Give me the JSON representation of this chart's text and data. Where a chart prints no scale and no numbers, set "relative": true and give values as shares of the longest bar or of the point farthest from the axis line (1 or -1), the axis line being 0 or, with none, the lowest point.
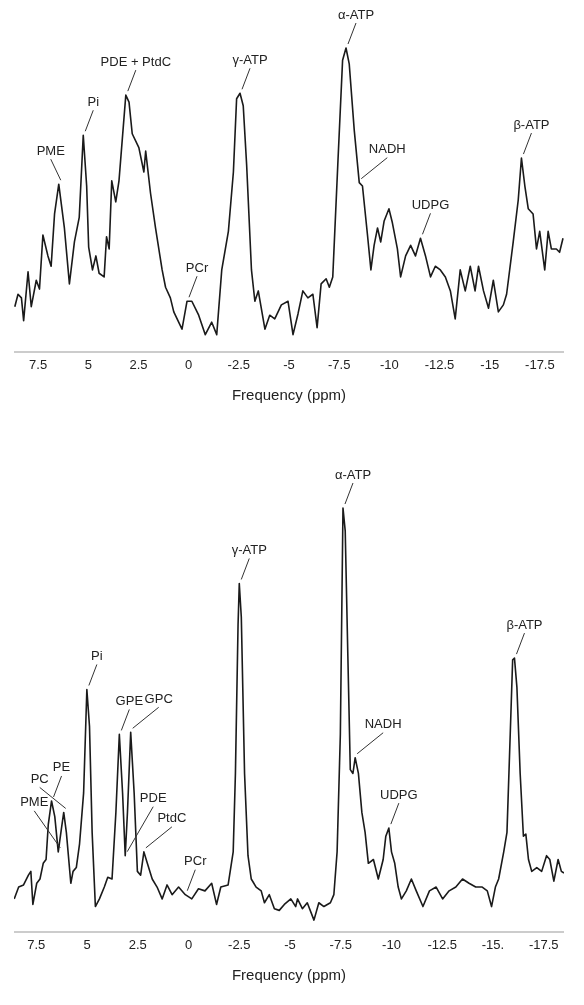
{
  "chart_data": [
    {
      "type": "line",
      "relative": true,
      "xlabel": "Frequency (ppm)",
      "xlim": [
        8.7,
        -18.7
      ],
      "xticks": [
        7.5,
        5,
        2.5,
        0,
        -2.5,
        -5,
        -7.5,
        -10,
        -12.5,
        -15,
        -17.5
      ],
      "marker": "none",
      "line_style": "solid",
      "x": [
        8.66,
        8.5,
        8.33,
        8.22,
        8.0,
        7.84,
        7.59,
        7.43,
        7.26,
        7.01,
        6.85,
        6.68,
        6.47,
        6.19,
        5.94,
        5.69,
        5.45,
        5.25,
        5.08,
        4.98,
        4.79,
        4.62,
        4.46,
        4.21,
        4.09,
        3.96,
        3.83,
        3.63,
        3.47,
        3.13,
        2.97,
        2.81,
        2.48,
        2.23,
        2.14,
        1.9,
        1.65,
        1.32,
        1.15,
        0.91,
        0.74,
        0.33,
        0.08,
        -0.16,
        -0.5,
        -0.83,
        -1.15,
        -1.4,
        -1.65,
        -1.98,
        -2.23,
        -2.39,
        -2.56,
        -2.72,
        -2.89,
        -3.13,
        -3.3,
        -3.47,
        -3.8,
        -4.04,
        -4.29,
        -4.62,
        -4.95,
        -5.2,
        -5.45,
        -5.69,
        -5.94,
        -6.19,
        -6.4,
        -6.6,
        -6.85,
        -7.01,
        -7.18,
        -7.43,
        -7.67,
        -7.84,
        -8.0,
        -8.25,
        -8.5,
        -8.66,
        -8.91,
        -9.08,
        -9.24,
        -9.41,
        -9.57,
        -9.74,
        -9.98,
        -10.15,
        -10.4,
        -10.56,
        -10.81,
        -11.06,
        -11.3,
        -11.55,
        -11.8,
        -12.05,
        -12.29,
        -12.54,
        -12.79,
        -13.04,
        -13.28,
        -13.53,
        -13.78,
        -14.03,
        -14.27,
        -14.44,
        -14.69,
        -14.94,
        -15.18,
        -15.43,
        -15.68,
        -15.84,
        -16.17,
        -16.42,
        -16.58,
        -16.75,
        -16.92,
        -17.16,
        -17.33,
        -17.49,
        -17.74,
        -17.91,
        -18.07,
        -18.32,
        -18.48,
        -18.65
      ],
      "series": [
        {
          "color": "#1a1a1a",
          "values": [
            0.149,
            0.19,
            0.178,
            0.103,
            0.264,
            0.149,
            0.236,
            0.207,
            0.385,
            0.316,
            0.282,
            0.454,
            0.552,
            0.408,
            0.224,
            0.362,
            0.443,
            0.713,
            0.546,
            0.345,
            0.27,
            0.316,
            0.259,
            0.247,
            0.379,
            0.339,
            0.563,
            0.494,
            0.563,
            0.845,
            0.822,
            0.718,
            0.672,
            0.592,
            0.661,
            0.523,
            0.408,
            0.27,
            0.213,
            0.178,
            0.132,
            0.075,
            0.167,
            0.167,
            0.121,
            0.057,
            0.098,
            0.057,
            0.27,
            0.397,
            0.592,
            0.833,
            0.851,
            0.81,
            0.615,
            0.27,
            0.167,
            0.201,
            0.075,
            0.121,
            0.109,
            0.155,
            0.167,
            0.057,
            0.126,
            0.201,
            0.178,
            0.19,
            0.08,
            0.224,
            0.241,
            0.213,
            0.247,
            0.615,
            0.96,
            1,
            0.948,
            0.73,
            0.557,
            0.546,
            0.385,
            0.27,
            0.351,
            0.408,
            0.362,
            0.431,
            0.471,
            0.425,
            0.339,
            0.247,
            0.316,
            0.351,
            0.316,
            0.374,
            0.316,
            0.247,
            0.282,
            0.27,
            0.247,
            0.201,
            0.109,
            0.27,
            0.201,
            0.282,
            0.201,
            0.282,
            0.201,
            0.144,
            0.236,
            0.132,
            0.155,
            0.19,
            0.362,
            0.5,
            0.638,
            0.546,
            0.471,
            0.454,
            0.339,
            0.397,
            0.27,
            0.397,
            0.339,
            0.339,
            0.328,
            0.374
          ]
        }
      ],
      "annotations": [
        {
          "text": "PME",
          "x": 6.47,
          "y": 0.552
        },
        {
          "text": "Pi",
          "x": 5.25,
          "y": 0.713
        },
        {
          "text": "PDE + PtdC",
          "x": 3.13,
          "y": 0.845
        },
        {
          "text": "PCr",
          "x": 0.08,
          "y": 0.167
        },
        {
          "text": "γ-ATP",
          "x": -2.56,
          "y": 0.851
        },
        {
          "text": "α-ATP",
          "x": -7.84,
          "y": 1
        },
        {
          "text": "NADH",
          "x": -8.5,
          "y": 0.557
        },
        {
          "text": "UDPG",
          "x": -11.55,
          "y": 0.374
        },
        {
          "text": "β-ATP",
          "x": -16.58,
          "y": 0.638
        }
      ]
    },
    {
      "type": "line",
      "relative": true,
      "xlabel": "Frequency (ppm)",
      "xlim": [
        8.6,
        -18.5
      ],
      "xticks": [
        7.5,
        5,
        2.5,
        0,
        -2.5,
        -5,
        -7.5,
        -10,
        -12.5,
        {
          "value": -15,
          "label": "-15."
        },
        -17.5
      ],
      "marker": "none",
      "line_style": "solid",
      "x": [
        8.59,
        8.37,
        8.13,
        7.89,
        7.77,
        7.67,
        7.48,
        7.32,
        7.16,
        7.02,
        6.91,
        6.75,
        6.59,
        6.42,
        6.26,
        6.15,
        6.02,
        5.8,
        5.69,
        5.53,
        5.37,
        5.17,
        5.01,
        4.88,
        4.75,
        4.59,
        4.39,
        4.15,
        3.98,
        3.77,
        3.58,
        3.41,
        3.25,
        3.12,
        3.01,
        2.85,
        2.68,
        2.52,
        2.36,
        2.2,
        2.03,
        1.79,
        1.55,
        1.3,
        1.06,
        0.81,
        0.49,
        0.16,
        -0.16,
        -0.49,
        -0.81,
        -1.14,
        -1.38,
        -1.59,
        -1.95,
        -2.2,
        -2.31,
        -2.44,
        -2.5,
        -2.6,
        -2.76,
        -2.93,
        -3.09,
        -3.33,
        -3.58,
        -3.74,
        -3.98,
        -4.23,
        -4.47,
        -4.72,
        -5.04,
        -5.28,
        -5.37,
        -5.61,
        -5.85,
        -6.18,
        -6.42,
        -6.67,
        -6.99,
        -7.16,
        -7.32,
        -7.48,
        -7.61,
        -7.72,
        -7.85,
        -7.97,
        -8.1,
        -8.21,
        -8.37,
        -8.54,
        -8.7,
        -8.86,
        -9.11,
        -9.35,
        -9.59,
        -9.72,
        -9.87,
        -10.0,
        -10.16,
        -10.33,
        -10.49,
        -10.73,
        -10.98,
        -11.22,
        -11.55,
        -11.87,
        -12.2,
        -12.52,
        -12.84,
        -13.17,
        -13.5,
        -13.82,
        -14.15,
        -14.47,
        -14.72,
        -14.93,
        -15.12,
        -15.28,
        -15.53,
        -15.69,
        -15.85,
        -15.97,
        -16.06,
        -16.18,
        -16.34,
        -16.5,
        -16.62,
        -16.75,
        -16.91,
        -17.16,
        -17.4,
        -17.64,
        -17.8,
        -18.0,
        -18.21,
        -18.37,
        -18.5
      ],
      "series": [
        {
          "color": "#1a1a1a",
          "values": [
            0.078,
            0.106,
            0.111,
            0.134,
            0.143,
            0.065,
            0.115,
            0.125,
            0.162,
            0.171,
            0.254,
            0.309,
            0.272,
            0.189,
            0.245,
            0.282,
            0.235,
            0.115,
            0.143,
            0.152,
            0.208,
            0.328,
            0.572,
            0.485,
            0.235,
            0.06,
            0.078,
            0.106,
            0.129,
            0.125,
            0.282,
            0.466,
            0.328,
            0.18,
            0.282,
            0.471,
            0.328,
            0.143,
            0.134,
            0.189,
            0.162,
            0.125,
            0.106,
            0.078,
            0.111,
            0.088,
            0.106,
            0.088,
            0.078,
            0.102,
            0.097,
            0.115,
            0.065,
            0.106,
            0.111,
            0.189,
            0.374,
            0.725,
            0.822,
            0.743,
            0.374,
            0.18,
            0.125,
            0.106,
            0.097,
            0.069,
            0.088,
            0.055,
            0.051,
            0.065,
            0.078,
            0.06,
            0.078,
            0.055,
            0.069,
            0.028,
            0.069,
            0.06,
            0.069,
            0.088,
            0.189,
            0.466,
            1,
            0.946,
            0.651,
            0.383,
            0.374,
            0.411,
            0.374,
            0.282,
            0.235,
            0.162,
            0.171,
            0.125,
            0.171,
            0.226,
            0.245,
            0.189,
            0.162,
            0.106,
            0.078,
            0.097,
            0.125,
            0.097,
            0.06,
            0.097,
            0.106,
            0.078,
            0.097,
            0.106,
            0.125,
            0.115,
            0.106,
            0.106,
            0.097,
            0.06,
            0.106,
            0.125,
            0.189,
            0.235,
            0.466,
            0.642,
            0.646,
            0.577,
            0.374,
            0.226,
            0.231,
            0.171,
            0.143,
            0.152,
            0.143,
            0.18,
            0.171,
            0.12,
            0.171,
            0.143,
            0.139
          ]
        }
      ],
      "annotations": [
        {
          "text": "PE",
          "x": 6.75,
          "y": 0.309
        },
        {
          "text": "PC",
          "x": 6.15,
          "y": 0.282
        },
        {
          "text": "Pi",
          "x": 5.01,
          "y": 0.572
        },
        {
          "text": "GPE",
          "x": 3.41,
          "y": 0.466
        },
        {
          "text": "GPC",
          "x": 2.85,
          "y": 0.471
        },
        {
          "text": "PtdC",
          "x": 2.2,
          "y": 0.189
        },
        {
          "text": "PCr",
          "x": 0.16,
          "y": 0.088
        },
        {
          "text": "γ-ATP",
          "x": -2.5,
          "y": 0.822
        },
        {
          "text": "α-ATP",
          "x": -7.61,
          "y": 1
        },
        {
          "text": "NADH",
          "x": -8.21,
          "y": 0.411
        },
        {
          "text": "UDPG",
          "x": -9.87,
          "y": 0.245
        },
        {
          "text": "β-ATP",
          "x": -16.06,
          "y": 0.646
        },
        {
          "text": "PME",
          "x": 6.42,
          "y": 0.189
        },
        {
          "text": "PDE",
          "x": 3.12,
          "y": 0.18
        }
      ]
    }
  ]
}
